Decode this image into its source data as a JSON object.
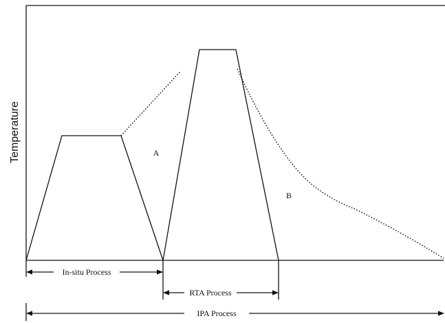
{
  "y_axis_label": "Temperature",
  "regions": [
    "A",
    "B"
  ],
  "spans": [
    "In-situ Process",
    "RTA Process",
    "IPA Process"
  ]
}
